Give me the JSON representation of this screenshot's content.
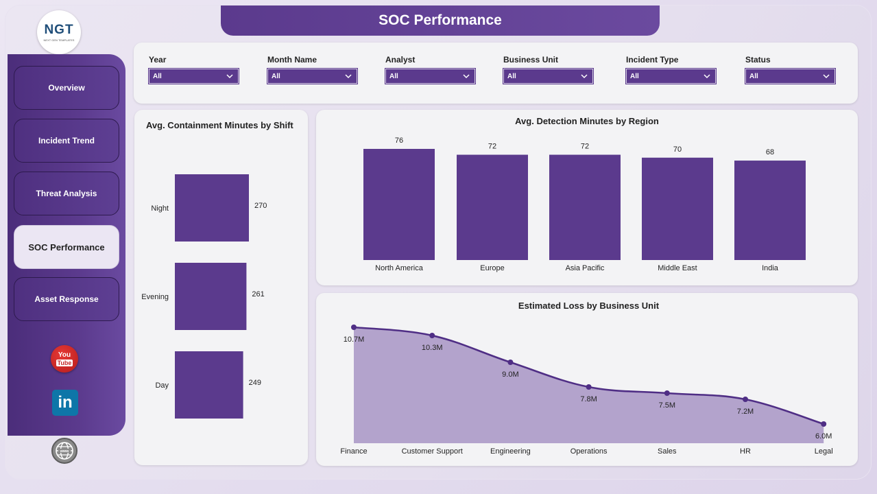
{
  "header": {
    "title": "SOC Performance"
  },
  "sidebar": {
    "items": [
      {
        "label": "Overview"
      },
      {
        "label": "Incident Trend"
      },
      {
        "label": "Threat Analysis"
      },
      {
        "label": "SOC Performance",
        "active": true
      },
      {
        "label": "Asset Response"
      }
    ]
  },
  "logo": {
    "text": "NGT",
    "subtext": "NEXT GEN TEMPLATES"
  },
  "social": {
    "youtube_top": "You",
    "youtube_bottom": "Tube",
    "linkedin": "in"
  },
  "filters": [
    {
      "label": "Year",
      "value": "All"
    },
    {
      "label": "Month Name",
      "value": "All"
    },
    {
      "label": "Analyst",
      "value": "All"
    },
    {
      "label": "Business Unit",
      "value": "All"
    },
    {
      "label": "Incident Type",
      "value": "All"
    },
    {
      "label": "Status",
      "value": "All"
    }
  ],
  "colors": {
    "accent": "#5b3a8d",
    "bar": "#5b3a8d",
    "area_fill": "#b3a3cc",
    "line": "#4f2e85"
  },
  "chart_data": [
    {
      "type": "bar",
      "orientation": "horizontal",
      "title": "Avg. Containment Minutes by Shift",
      "categories": [
        "Night",
        "Evening",
        "Day"
      ],
      "values": [
        270,
        261,
        249
      ],
      "labels": [
        "270",
        "261",
        "249"
      ]
    },
    {
      "type": "bar",
      "title": "Avg. Detection Minutes by Region",
      "categories": [
        "North America",
        "Europe",
        "Asia Pacific",
        "Middle East",
        "India"
      ],
      "values": [
        76,
        72,
        72,
        70,
        68
      ],
      "labels": [
        "76",
        "72",
        "72",
        "70",
        "68"
      ]
    },
    {
      "type": "area",
      "title": "Estimated Loss by Business Unit",
      "categories": [
        "Finance",
        "Customer Support",
        "Engineering",
        "Operations",
        "Sales",
        "HR",
        "Legal"
      ],
      "values": [
        10.7,
        10.3,
        9.0,
        7.8,
        7.5,
        7.2,
        6.0
      ],
      "labels": [
        "10.7M",
        "10.3M",
        "9.0M",
        "7.8M",
        "7.5M",
        "7.2M",
        "6.0M"
      ]
    }
  ]
}
